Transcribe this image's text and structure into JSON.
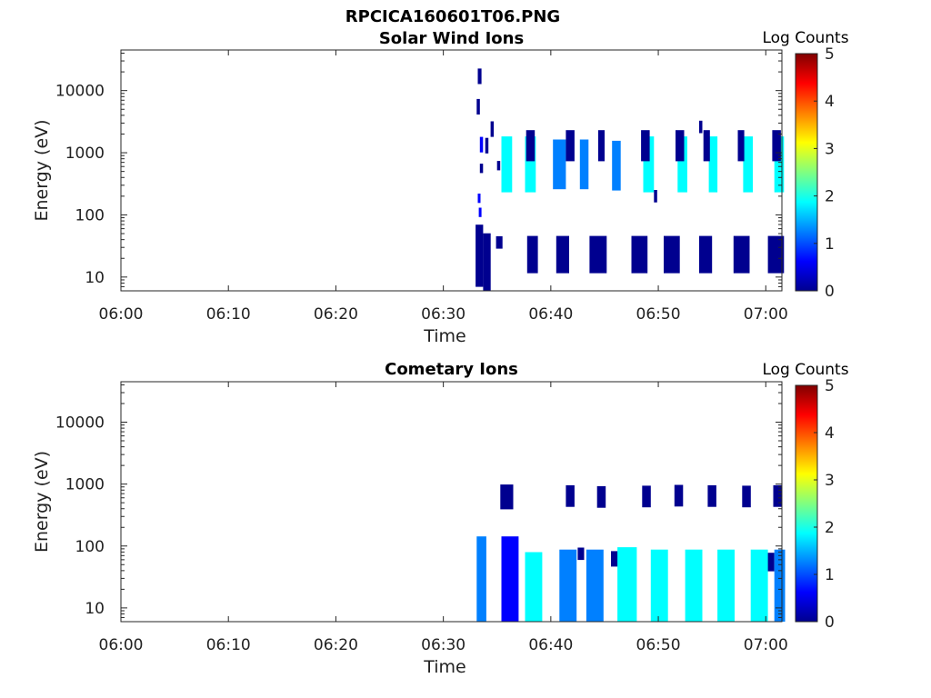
{
  "figure_title": "RPCICA160601T06.PNG",
  "colormap": [
    "#00008f",
    "#0000ff",
    "#0080ff",
    "#00ffff",
    "#80ff80",
    "#ffff00",
    "#ff8000",
    "#ff0000",
    "#800000"
  ],
  "chart_data": [
    {
      "type": "heatmap",
      "title": "Solar Wind Ions",
      "xlabel": "Time",
      "ylabel": "Energy (eV)",
      "x_ticks": [
        "06:00",
        "06:10",
        "06:20",
        "06:30",
        "06:40",
        "06:50",
        "07:00"
      ],
      "x_tick_minutes": [
        0,
        10,
        20,
        30,
        40,
        50,
        60
      ],
      "xlim_minutes": [
        0,
        61.5
      ],
      "y_scale": "log",
      "y_ticks": [
        "10",
        "100",
        "1000",
        "10000"
      ],
      "y_tick_values": [
        10,
        100,
        1000,
        10000
      ],
      "ylim": [
        6,
        45000
      ],
      "colorbar": {
        "label": "Log Counts",
        "range": [
          0,
          5
        ],
        "ticks": [
          "0",
          "1",
          "2",
          "3",
          "4",
          "5"
        ]
      },
      "cells": [
        [
          33.2,
          17000,
          0.35,
          0.25
        ],
        [
          33.1,
          5500,
          0.3,
          0.25
        ],
        [
          33.4,
          1350,
          0.3,
          0.25
        ],
        [
          33.9,
          1300,
          0.3,
          0.25
        ],
        [
          34.4,
          2400,
          0.3,
          0.25
        ],
        [
          33.4,
          560,
          0.3,
          0.15
        ],
        [
          35.0,
          620,
          0.3,
          0.15
        ],
        [
          35.4,
          650,
          1.0,
          0.9
        ],
        [
          37.6,
          650,
          1.0,
          0.9
        ],
        [
          40.2,
          650,
          1.2,
          0.8
        ],
        [
          42.7,
          650,
          0.8,
          0.8
        ],
        [
          45.7,
          620,
          0.8,
          0.8
        ],
        [
          48.6,
          650,
          1.0,
          0.9
        ],
        [
          51.8,
          650,
          0.9,
          0.9
        ],
        [
          54.7,
          650,
          0.8,
          0.9
        ],
        [
          57.9,
          650,
          0.9,
          0.9
        ],
        [
          60.8,
          650,
          0.9,
          0.9
        ],
        [
          37.7,
          1300,
          0.8,
          0.5
        ],
        [
          41.4,
          1300,
          0.8,
          0.5
        ],
        [
          44.4,
          1300,
          0.6,
          0.5
        ],
        [
          48.4,
          1300,
          0.8,
          0.5
        ],
        [
          51.6,
          1300,
          0.8,
          0.5
        ],
        [
          54.2,
          1300,
          0.6,
          0.5
        ],
        [
          57.4,
          1300,
          0.6,
          0.5
        ],
        [
          60.6,
          1300,
          0.8,
          0.5
        ],
        [
          49.6,
          200,
          0.3,
          0.2
        ],
        [
          53.8,
          2600,
          0.3,
          0.2
        ],
        [
          33.2,
          185,
          0.25,
          0.15
        ],
        [
          33.3,
          110,
          0.25,
          0.15
        ],
        [
          33.0,
          22,
          0.7,
          1.0
        ],
        [
          33.7,
          16,
          0.7,
          1.0
        ],
        [
          34.9,
          36,
          0.6,
          0.2
        ],
        [
          37.8,
          23,
          1.0,
          0.6
        ],
        [
          40.5,
          23,
          1.2,
          0.6
        ],
        [
          43.6,
          23,
          1.6,
          0.6
        ],
        [
          47.5,
          23,
          1.5,
          0.6
        ],
        [
          50.5,
          23,
          1.5,
          0.6
        ],
        [
          53.8,
          23,
          1.2,
          0.6
        ],
        [
          57.0,
          23,
          1.5,
          0.6
        ],
        [
          60.2,
          23,
          1.5,
          0.6
        ]
      ],
      "cell_colors": [
        0,
        0,
        1,
        0,
        0,
        0,
        0,
        3,
        3,
        2,
        2,
        2,
        3,
        3,
        3,
        3,
        3,
        0,
        0,
        0,
        0,
        0,
        0,
        0,
        0,
        0,
        0,
        1,
        1,
        0,
        0,
        0,
        0,
        0,
        0,
        0,
        0,
        0,
        0,
        0
      ]
    },
    {
      "type": "heatmap",
      "title": "Cometary Ions",
      "xlabel": "Time",
      "ylabel": "Energy (eV)",
      "x_ticks": [
        "06:00",
        "06:10",
        "06:20",
        "06:30",
        "06:40",
        "06:50",
        "07:00"
      ],
      "x_tick_minutes": [
        0,
        10,
        20,
        30,
        40,
        50,
        60
      ],
      "xlim_minutes": [
        0,
        61.5
      ],
      "y_scale": "log",
      "y_ticks": [
        "10",
        "100",
        "1000",
        "10000"
      ],
      "y_tick_values": [
        10,
        100,
        1000,
        10000
      ],
      "ylim": [
        6,
        45000
      ],
      "colorbar": {
        "label": "Log Counts",
        "range": [
          0,
          5
        ],
        "ticks": [
          "0",
          "1",
          "2",
          "3",
          "4",
          "5"
        ]
      },
      "cells": [
        [
          35.3,
          620,
          1.2,
          0.4
        ],
        [
          41.4,
          640,
          0.8,
          0.35
        ],
        [
          44.3,
          620,
          0.8,
          0.35
        ],
        [
          48.5,
          630,
          0.8,
          0.35
        ],
        [
          51.5,
          650,
          0.8,
          0.35
        ],
        [
          54.6,
          640,
          0.8,
          0.35
        ],
        [
          57.8,
          630,
          0.8,
          0.35
        ],
        [
          60.7,
          640,
          0.8,
          0.35
        ],
        [
          33.3,
          45,
          0.4,
          0.2
        ],
        [
          35.6,
          52,
          0.9,
          0.25
        ],
        [
          42.5,
          75,
          0.6,
          0.2
        ],
        [
          45.6,
          62,
          1.0,
          0.25
        ],
        [
          49.8,
          52,
          1.0,
          0.3
        ],
        [
          53.0,
          55,
          1.0,
          0.3
        ],
        [
          56.0,
          58,
          1.0,
          0.3
        ],
        [
          59.6,
          55,
          1.2,
          0.3
        ],
        [
          33.1,
          18,
          0.9,
          1.8
        ],
        [
          35.4,
          18,
          1.6,
          1.8
        ],
        [
          37.6,
          20,
          1.6,
          1.2
        ],
        [
          40.8,
          22,
          1.6,
          1.2
        ],
        [
          43.3,
          22,
          1.6,
          1.2
        ],
        [
          46.2,
          24,
          1.8,
          1.2
        ],
        [
          49.3,
          22,
          1.6,
          1.2
        ],
        [
          52.5,
          22,
          1.6,
          1.2
        ],
        [
          55.5,
          22,
          1.6,
          1.2
        ],
        [
          58.6,
          22,
          1.6,
          1.2
        ],
        [
          60.8,
          22,
          1.0,
          1.2
        ]
      ],
      "cell_colors": [
        0,
        0,
        0,
        0,
        0,
        0,
        0,
        0,
        0,
        0,
        0,
        0,
        0,
        0,
        0,
        0,
        2,
        1,
        3,
        2,
        2,
        3,
        3,
        3,
        3,
        3,
        2
      ]
    }
  ]
}
